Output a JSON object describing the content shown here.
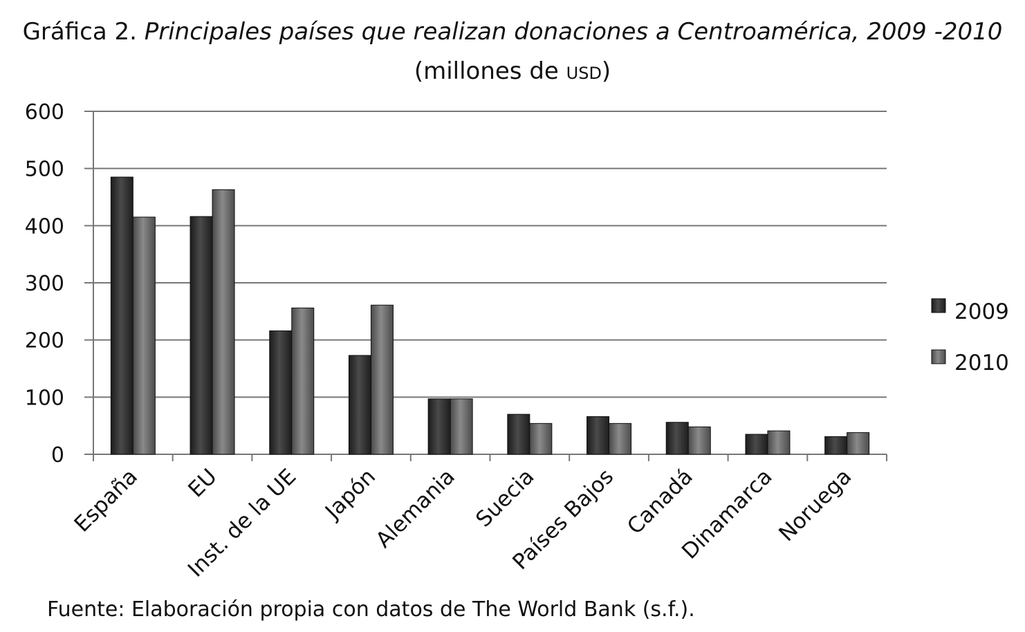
{
  "title": {
    "prefix": "Gráfica 2.",
    "main": "Principales países que realizan donaciones a Centroamérica, 2009 -2010",
    "subtitle_open": "(millones de ",
    "subtitle_unit": "USD",
    "subtitle_close": ")"
  },
  "source": "Fuente: Elaboración propia con datos de The World Bank (s.f.).",
  "colors": {
    "s2009": "#2b2b2b",
    "s2010": "#6a6a6a",
    "grid": "#777777"
  },
  "chart_data": {
    "type": "bar",
    "title": "Gráfica 2. Principales países que realizan donaciones a Centroamérica, 2009 -2010",
    "subtitle": "(millones de USD)",
    "categories": [
      "España",
      "EU",
      "Inst. de la UE",
      "Japón",
      "Alemania",
      "Suecia",
      "Países Bajos",
      "Canadá",
      "Dinamarca",
      "Noruega"
    ],
    "series": [
      {
        "name": "2009",
        "values": [
          485,
          416,
          216,
          173,
          97,
          70,
          66,
          56,
          35,
          31
        ]
      },
      {
        "name": "2010",
        "values": [
          415,
          463,
          256,
          261,
          97,
          54,
          54,
          48,
          41,
          38
        ]
      }
    ],
    "ylim": [
      0,
      600
    ],
    "yticks": [
      0,
      100,
      200,
      300,
      400,
      500,
      600
    ],
    "grid": true,
    "legend": "right"
  }
}
